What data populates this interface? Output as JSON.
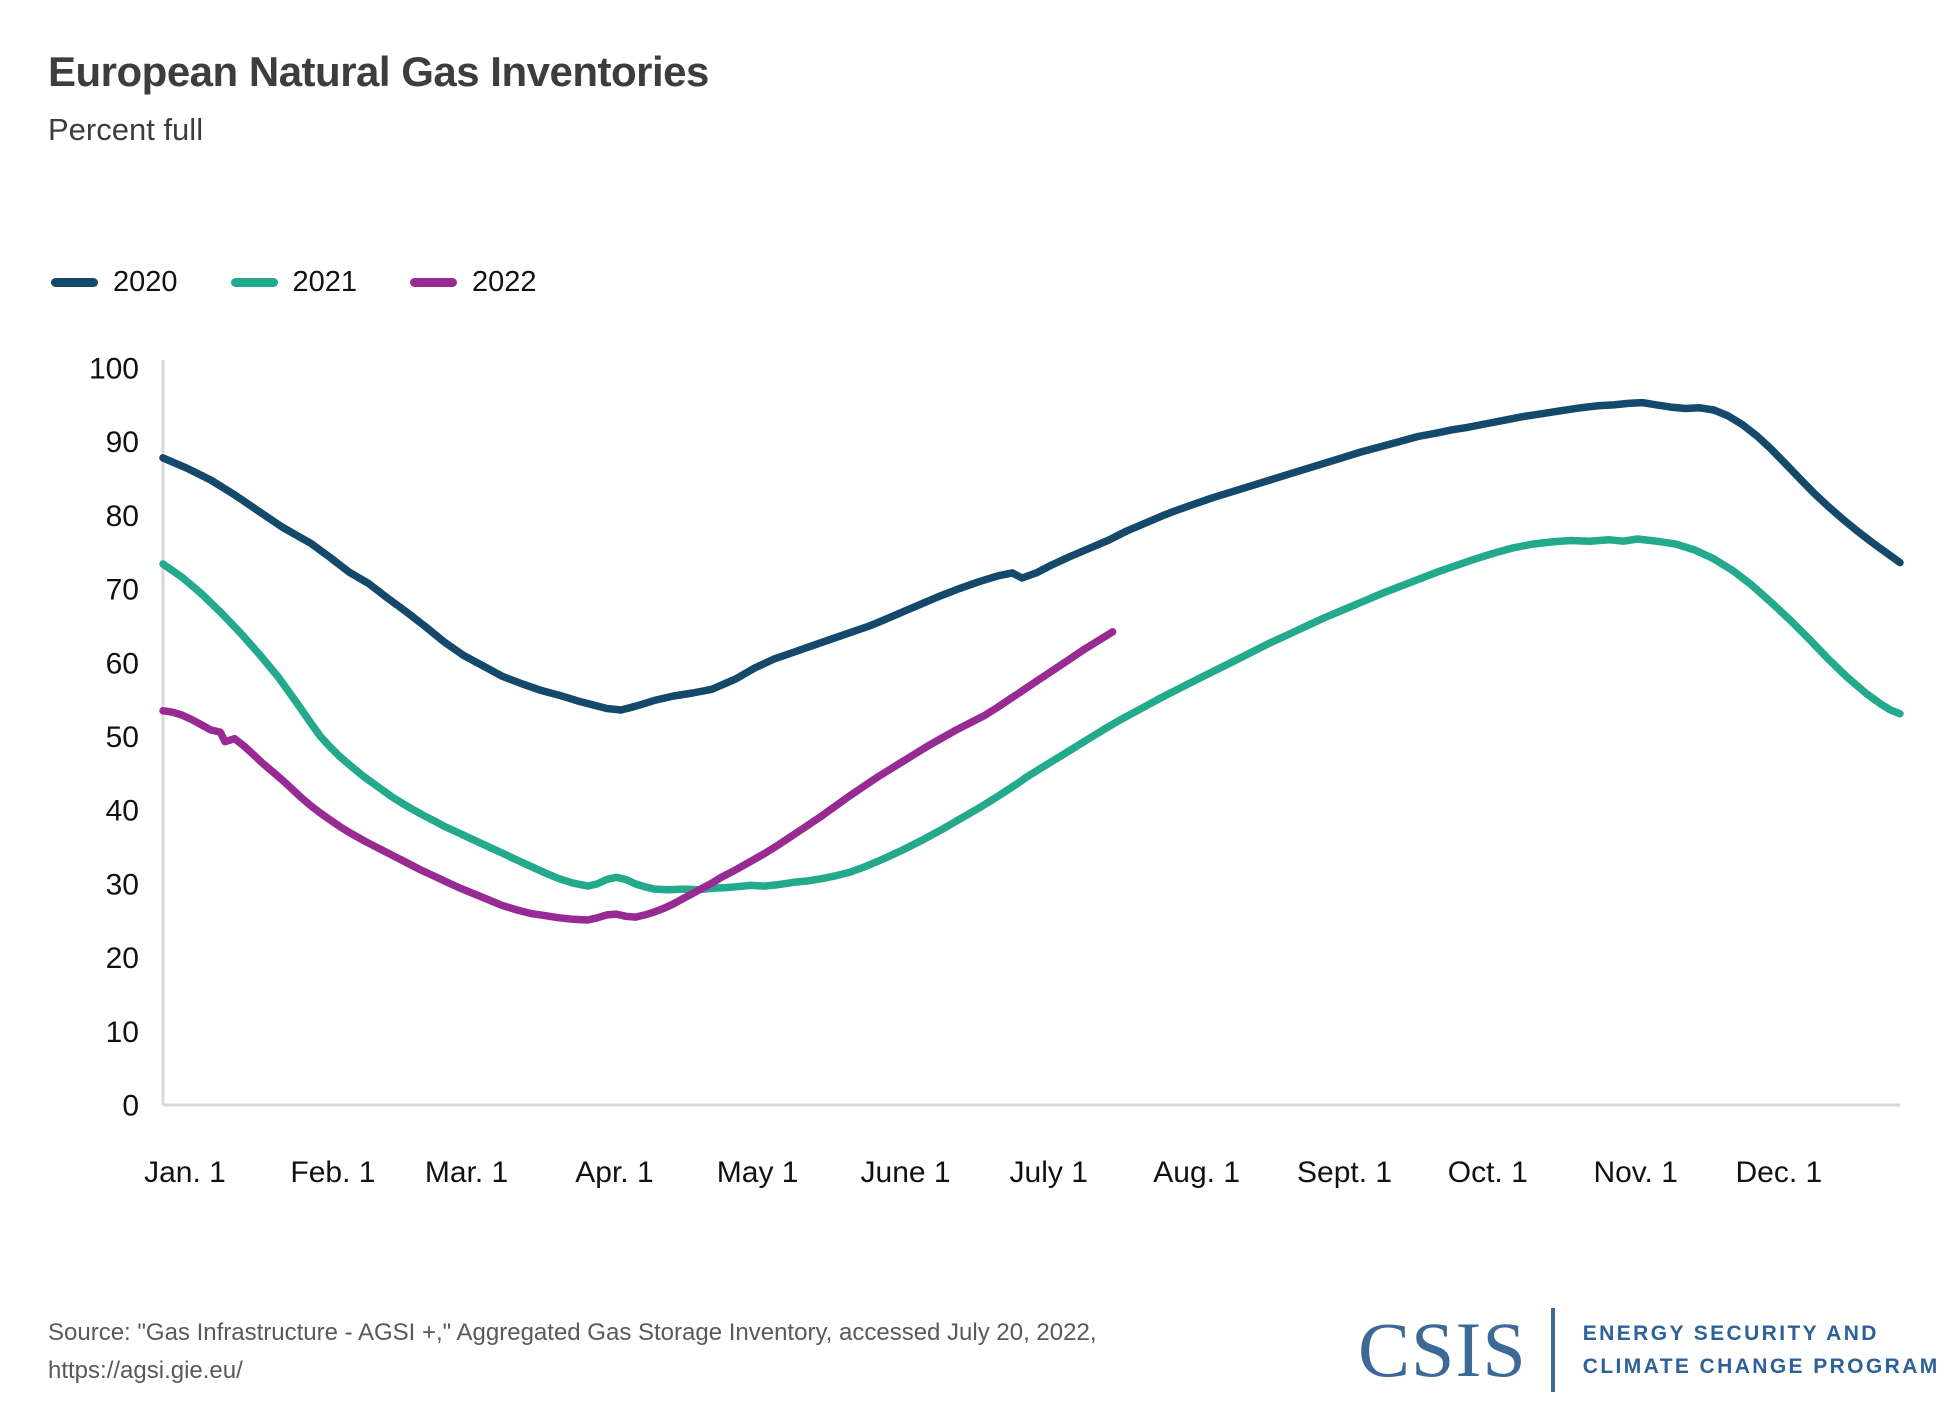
{
  "header": {
    "title": "European Natural Gas Inventories",
    "subtitle": "Percent full"
  },
  "legend": [
    {
      "label": "2020",
      "color": "#15496B"
    },
    {
      "label": "2021",
      "color": "#23A98C"
    },
    {
      "label": "2022",
      "color": "#972B93"
    }
  ],
  "chart_data": {
    "type": "line",
    "title": "European Natural Gas Inventories",
    "ylabel": "Percent full",
    "xlabel": "",
    "ylim": [
      0,
      100
    ],
    "grid": "off",
    "legend_position": "top-left",
    "axis_color": "#D9D9D9",
    "tick_label_color": "#111111",
    "y_ticks": [
      0,
      10,
      20,
      30,
      40,
      50,
      60,
      70,
      80,
      90,
      100
    ],
    "x_ticks": [
      {
        "label": "Jan. 1",
        "day": 1
      },
      {
        "label": "Feb. 1",
        "day": 32
      },
      {
        "label": "Mar. 1",
        "day": 60
      },
      {
        "label": "Apr. 1",
        "day": 91
      },
      {
        "label": "May 1",
        "day": 121
      },
      {
        "label": "June 1",
        "day": 152
      },
      {
        "label": "July 1",
        "day": 182
      },
      {
        "label": "Aug. 1",
        "day": 213
      },
      {
        "label": "Sept. 1",
        "day": 244
      },
      {
        "label": "Oct. 1",
        "day": 274
      },
      {
        "label": "Nov. 1",
        "day": 305
      },
      {
        "label": "Dec. 1",
        "day": 335
      }
    ],
    "x_range_days": [
      1,
      365
    ],
    "series": [
      {
        "name": "2020",
        "color": "#15496B",
        "points": [
          [
            1,
            87.8
          ],
          [
            6,
            86.4
          ],
          [
            11,
            84.8
          ],
          [
            16,
            82.8
          ],
          [
            21,
            80.6
          ],
          [
            26,
            78.4
          ],
          [
            32,
            76.2
          ],
          [
            36,
            74.3
          ],
          [
            40,
            72.3
          ],
          [
            44,
            70.8
          ],
          [
            48,
            68.8
          ],
          [
            52,
            66.9
          ],
          [
            56,
            64.9
          ],
          [
            60,
            62.8
          ],
          [
            64,
            61.0
          ],
          [
            68,
            59.6
          ],
          [
            72,
            58.2
          ],
          [
            76,
            57.2
          ],
          [
            80,
            56.3
          ],
          [
            84,
            55.6
          ],
          [
            88,
            54.8
          ],
          [
            91,
            54.3
          ],
          [
            94,
            53.8
          ],
          [
            97,
            53.6
          ],
          [
            100,
            54.1
          ],
          [
            104,
            54.9
          ],
          [
            108,
            55.5
          ],
          [
            112,
            55.9
          ],
          [
            116,
            56.4
          ],
          [
            121,
            57.8
          ],
          [
            125,
            59.3
          ],
          [
            129,
            60.5
          ],
          [
            133,
            61.4
          ],
          [
            137,
            62.3
          ],
          [
            141,
            63.2
          ],
          [
            145,
            64.1
          ],
          [
            149,
            65.0
          ],
          [
            152,
            65.8
          ],
          [
            156,
            66.9
          ],
          [
            160,
            68.0
          ],
          [
            164,
            69.1
          ],
          [
            168,
            70.1
          ],
          [
            172,
            71.0
          ],
          [
            176,
            71.8
          ],
          [
            179,
            72.2
          ],
          [
            181,
            71.5
          ],
          [
            184,
            72.2
          ],
          [
            187,
            73.2
          ],
          [
            191,
            74.4
          ],
          [
            195,
            75.5
          ],
          [
            199,
            76.6
          ],
          [
            203,
            77.9
          ],
          [
            207,
            79.0
          ],
          [
            211,
            80.1
          ],
          [
            213,
            80.6
          ],
          [
            217,
            81.5
          ],
          [
            221,
            82.4
          ],
          [
            225,
            83.2
          ],
          [
            229,
            84.0
          ],
          [
            233,
            84.8
          ],
          [
            237,
            85.6
          ],
          [
            241,
            86.4
          ],
          [
            244,
            87.0
          ],
          [
            248,
            87.8
          ],
          [
            252,
            88.6
          ],
          [
            256,
            89.3
          ],
          [
            260,
            90.0
          ],
          [
            264,
            90.7
          ],
          [
            268,
            91.2
          ],
          [
            271,
            91.6
          ],
          [
            274,
            91.9
          ],
          [
            278,
            92.4
          ],
          [
            282,
            92.9
          ],
          [
            286,
            93.4
          ],
          [
            290,
            93.8
          ],
          [
            294,
            94.2
          ],
          [
            298,
            94.6
          ],
          [
            302,
            94.9
          ],
          [
            305,
            95.0
          ],
          [
            308,
            95.2
          ],
          [
            311,
            95.3
          ],
          [
            314,
            95.0
          ],
          [
            317,
            94.7
          ],
          [
            320,
            94.5
          ],
          [
            323,
            94.6
          ],
          [
            326,
            94.3
          ],
          [
            329,
            93.5
          ],
          [
            332,
            92.3
          ],
          [
            335,
            90.8
          ],
          [
            338,
            89.0
          ],
          [
            341,
            87.0
          ],
          [
            344,
            85.0
          ],
          [
            347,
            83.0
          ],
          [
            350,
            81.2
          ],
          [
            353,
            79.5
          ],
          [
            356,
            77.9
          ],
          [
            359,
            76.4
          ],
          [
            362,
            75.0
          ],
          [
            365,
            73.6
          ]
        ]
      },
      {
        "name": "2021",
        "color": "#23A98C",
        "points": [
          [
            1,
            73.4
          ],
          [
            5,
            71.6
          ],
          [
            9,
            69.4
          ],
          [
            13,
            66.9
          ],
          [
            17,
            64.2
          ],
          [
            21,
            61.3
          ],
          [
            25,
            58.2
          ],
          [
            29,
            54.6
          ],
          [
            32,
            51.8
          ],
          [
            34,
            50.0
          ],
          [
            36,
            48.6
          ],
          [
            38,
            47.3
          ],
          [
            40,
            46.2
          ],
          [
            43,
            44.6
          ],
          [
            46,
            43.2
          ],
          [
            49,
            41.8
          ],
          [
            52,
            40.6
          ],
          [
            55,
            39.5
          ],
          [
            58,
            38.5
          ],
          [
            60,
            37.8
          ],
          [
            63,
            36.9
          ],
          [
            66,
            36.0
          ],
          [
            69,
            35.1
          ],
          [
            72,
            34.2
          ],
          [
            75,
            33.3
          ],
          [
            78,
            32.4
          ],
          [
            81,
            31.5
          ],
          [
            84,
            30.7
          ],
          [
            87,
            30.1
          ],
          [
            90,
            29.7
          ],
          [
            92,
            30.0
          ],
          [
            94,
            30.6
          ],
          [
            96,
            30.9
          ],
          [
            98,
            30.6
          ],
          [
            100,
            30.0
          ],
          [
            102,
            29.6
          ],
          [
            104,
            29.3
          ],
          [
            107,
            29.2
          ],
          [
            110,
            29.3
          ],
          [
            113,
            29.2
          ],
          [
            116,
            29.4
          ],
          [
            119,
            29.5
          ],
          [
            121,
            29.6
          ],
          [
            124,
            29.8
          ],
          [
            127,
            29.7
          ],
          [
            130,
            29.9
          ],
          [
            133,
            30.2
          ],
          [
            136,
            30.4
          ],
          [
            139,
            30.7
          ],
          [
            142,
            31.1
          ],
          [
            145,
            31.6
          ],
          [
            148,
            32.3
          ],
          [
            152,
            33.4
          ],
          [
            156,
            34.6
          ],
          [
            160,
            35.9
          ],
          [
            164,
            37.3
          ],
          [
            168,
            38.8
          ],
          [
            172,
            40.3
          ],
          [
            176,
            41.9
          ],
          [
            180,
            43.6
          ],
          [
            182,
            44.5
          ],
          [
            186,
            46.1
          ],
          [
            190,
            47.7
          ],
          [
            194,
            49.3
          ],
          [
            198,
            50.9
          ],
          [
            202,
            52.4
          ],
          [
            206,
            53.8
          ],
          [
            210,
            55.2
          ],
          [
            213,
            56.2
          ],
          [
            217,
            57.5
          ],
          [
            221,
            58.8
          ],
          [
            225,
            60.1
          ],
          [
            229,
            61.4
          ],
          [
            233,
            62.7
          ],
          [
            237,
            63.9
          ],
          [
            241,
            65.1
          ],
          [
            244,
            66.0
          ],
          [
            248,
            67.1
          ],
          [
            252,
            68.2
          ],
          [
            256,
            69.3
          ],
          [
            260,
            70.3
          ],
          [
            264,
            71.3
          ],
          [
            268,
            72.3
          ],
          [
            272,
            73.2
          ],
          [
            276,
            74.1
          ],
          [
            280,
            74.9
          ],
          [
            284,
            75.6
          ],
          [
            288,
            76.1
          ],
          [
            292,
            76.4
          ],
          [
            296,
            76.6
          ],
          [
            300,
            76.5
          ],
          [
            304,
            76.7
          ],
          [
            307,
            76.5
          ],
          [
            310,
            76.8
          ],
          [
            314,
            76.5
          ],
          [
            318,
            76.1
          ],
          [
            322,
            75.3
          ],
          [
            326,
            74.1
          ],
          [
            330,
            72.5
          ],
          [
            334,
            70.5
          ],
          [
            338,
            68.2
          ],
          [
            342,
            65.8
          ],
          [
            346,
            63.2
          ],
          [
            350,
            60.5
          ],
          [
            354,
            58.0
          ],
          [
            358,
            55.8
          ],
          [
            361,
            54.4
          ],
          [
            363,
            53.6
          ],
          [
            365,
            53.1
          ]
        ]
      },
      {
        "name": "2022",
        "color": "#972B93",
        "points": [
          [
            1,
            53.5
          ],
          [
            3,
            53.3
          ],
          [
            5,
            52.9
          ],
          [
            7,
            52.3
          ],
          [
            9,
            51.6
          ],
          [
            11,
            50.9
          ],
          [
            13,
            50.6
          ],
          [
            14,
            49.3
          ],
          [
            16,
            49.7
          ],
          [
            18,
            48.7
          ],
          [
            20,
            47.5
          ],
          [
            22,
            46.3
          ],
          [
            24,
            45.2
          ],
          [
            26,
            44.1
          ],
          [
            28,
            42.9
          ],
          [
            30,
            41.7
          ],
          [
            32,
            40.6
          ],
          [
            34,
            39.6
          ],
          [
            36,
            38.7
          ],
          [
            38,
            37.8
          ],
          [
            40,
            37.0
          ],
          [
            43,
            35.9
          ],
          [
            46,
            34.9
          ],
          [
            49,
            33.9
          ],
          [
            52,
            32.9
          ],
          [
            55,
            31.9
          ],
          [
            58,
            31.0
          ],
          [
            60,
            30.4
          ],
          [
            63,
            29.5
          ],
          [
            66,
            28.7
          ],
          [
            69,
            27.9
          ],
          [
            72,
            27.1
          ],
          [
            75,
            26.5
          ],
          [
            78,
            26.0
          ],
          [
            81,
            25.7
          ],
          [
            84,
            25.4
          ],
          [
            87,
            25.2
          ],
          [
            90,
            25.1
          ],
          [
            92,
            25.4
          ],
          [
            94,
            25.8
          ],
          [
            96,
            25.9
          ],
          [
            98,
            25.6
          ],
          [
            100,
            25.5
          ],
          [
            102,
            25.8
          ],
          [
            104,
            26.2
          ],
          [
            106,
            26.7
          ],
          [
            108,
            27.3
          ],
          [
            110,
            28.0
          ],
          [
            112,
            28.7
          ],
          [
            114,
            29.4
          ],
          [
            116,
            30.1
          ],
          [
            118,
            30.9
          ],
          [
            121,
            31.9
          ],
          [
            124,
            33.0
          ],
          [
            127,
            34.1
          ],
          [
            130,
            35.3
          ],
          [
            133,
            36.6
          ],
          [
            136,
            37.9
          ],
          [
            139,
            39.2
          ],
          [
            142,
            40.6
          ],
          [
            145,
            42.0
          ],
          [
            148,
            43.3
          ],
          [
            151,
            44.6
          ],
          [
            155,
            46.2
          ],
          [
            158,
            47.4
          ],
          [
            161,
            48.6
          ],
          [
            164,
            49.7
          ],
          [
            167,
            50.8
          ],
          [
            170,
            51.8
          ],
          [
            173,
            52.8
          ],
          [
            176,
            54.0
          ],
          [
            179,
            55.3
          ],
          [
            182,
            56.6
          ],
          [
            185,
            57.9
          ],
          [
            188,
            59.2
          ],
          [
            191,
            60.5
          ],
          [
            194,
            61.8
          ],
          [
            197,
            63.0
          ],
          [
            199,
            63.8
          ],
          [
            200,
            64.2
          ]
        ]
      }
    ]
  },
  "footer": {
    "source_line1": "Source: \"Gas Infrastructure - AGSI +,\" Aggregated Gas Storage Inventory, accessed July 20, 2022,",
    "source_line2": "https://agsi.gie.eu/",
    "logo": {
      "wordmark": "CSIS",
      "program_line1": "ENERGY SECURITY AND",
      "program_line2": "CLIMATE CHANGE PROGRAM"
    }
  }
}
